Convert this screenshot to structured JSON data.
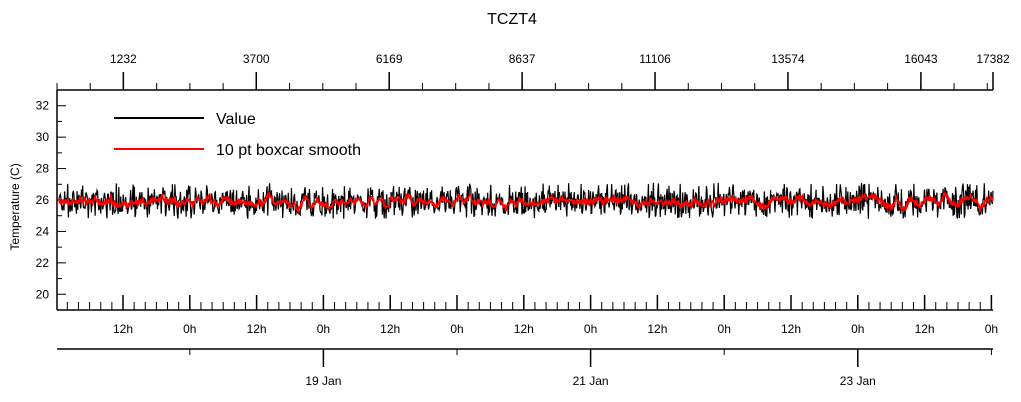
{
  "chart_data": {
    "type": "line",
    "title": "TCZT4",
    "ylabel": "Temperature (C)",
    "xlabel": "",
    "ylim": [
      19,
      33
    ],
    "y_ticks": [
      20,
      22,
      24,
      26,
      28,
      30,
      32
    ],
    "top_axis": {
      "ticks": [
        "1232",
        "3700",
        "6169",
        "8637",
        "11106",
        "13574",
        "16043",
        "17382"
      ]
    },
    "bottom_axis": {
      "hour_ticks": [
        "12h",
        "0h",
        "12h",
        "0h",
        "12h",
        "0h",
        "12h",
        "0h",
        "12h",
        "0h",
        "12h",
        "0h",
        "12h",
        "0h"
      ],
      "date_ticks": [
        "19 Jan",
        "21 Jan",
        "23 Jan"
      ]
    },
    "legend": {
      "position": "top-left"
    },
    "series": [
      {
        "name": "Value",
        "color": "#000000",
        "mean": 25.9,
        "min": 24.8,
        "max": 27.1
      },
      {
        "name": "10 pt boxcar smooth",
        "color": "#ff0000",
        "mean": 25.8,
        "min": 25.0,
        "max": 26.5
      }
    ]
  }
}
